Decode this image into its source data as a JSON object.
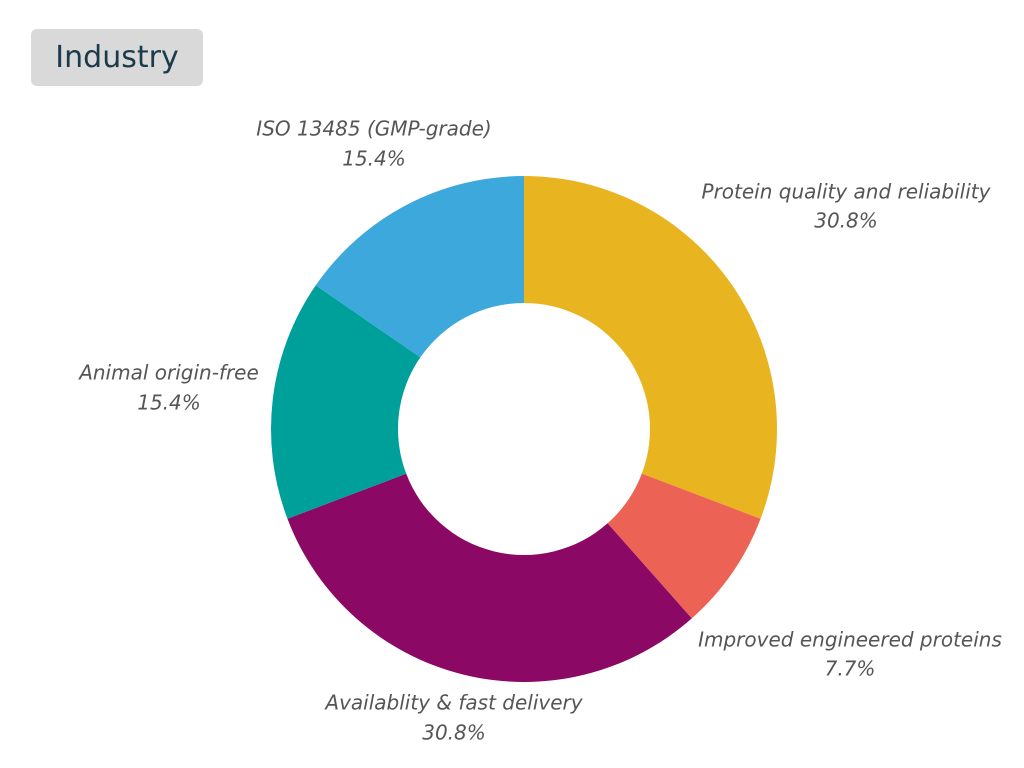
{
  "header": {
    "title": "Industry"
  },
  "chart_data": {
    "type": "pie",
    "donut": true,
    "title": "Industry",
    "start_angle_deg": 0,
    "direction": "clockwise",
    "slices": [
      {
        "label": "Protein quality and reliability",
        "value": 30.8,
        "display": "30.8%",
        "color": "#E8B520"
      },
      {
        "label": "Improved engineered proteins",
        "value": 7.7,
        "display": "7.7%",
        "color": "#EC6356"
      },
      {
        "label": "Availablity & fast delivery",
        "value": 30.8,
        "display": "30.8%",
        "color": "#8B0864"
      },
      {
        "label": "Animal origin-free",
        "value": 15.4,
        "display": "15.4%",
        "color": "#00A09A"
      },
      {
        "label": "ISO 13485 (GMP-grade)",
        "value": 15.4,
        "display": "15.4%",
        "color": "#3CA8DB"
      }
    ]
  }
}
